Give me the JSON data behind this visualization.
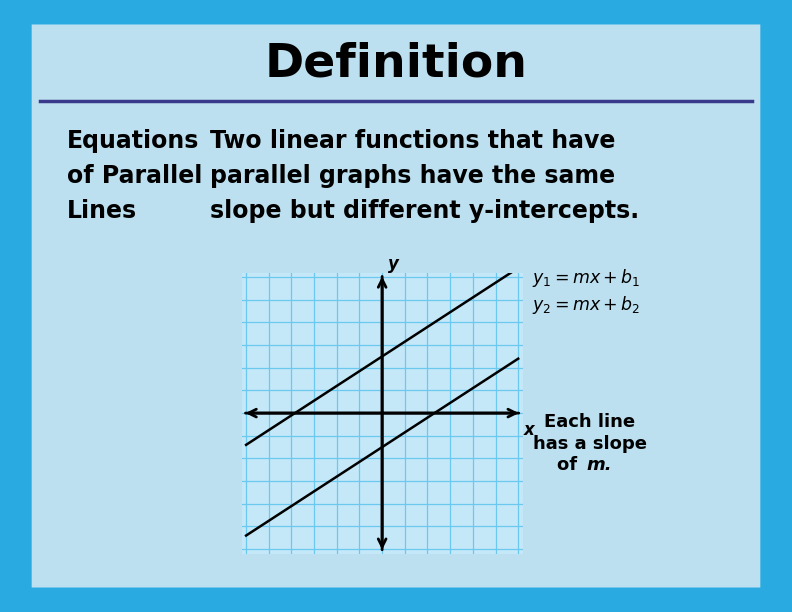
{
  "title": "Definition",
  "term": "Equations\nof Parallel\nLines",
  "definition": "Two linear functions that have\nparallel graphs have the same\nslope but different y-intercepts.",
  "bg_outer": "#29ABE2",
  "bg_inner": "#BDE0F0",
  "title_color": "#000000",
  "title_fontsize": 34,
  "separator_color": "#3A3A8C",
  "term_fontsize": 17,
  "def_fontsize": 17,
  "graph_facecolor": "#C5E8F8",
  "grid_color": "#6BC8EE",
  "axis_color": "#000000",
  "line_color": "#000000",
  "line1_slope": 0.65,
  "line1_intercept": 2.5,
  "line2_intercept": -1.5,
  "graph_xlim": [
    -6,
    6
  ],
  "graph_ylim": [
    -6,
    6
  ],
  "note_text_regular": "Each line\nhas a slope\nof ",
  "note_text_italic": "m.",
  "eq1": "y₁ = mx + b₁",
  "eq2": "y₂ = mx + b₂"
}
